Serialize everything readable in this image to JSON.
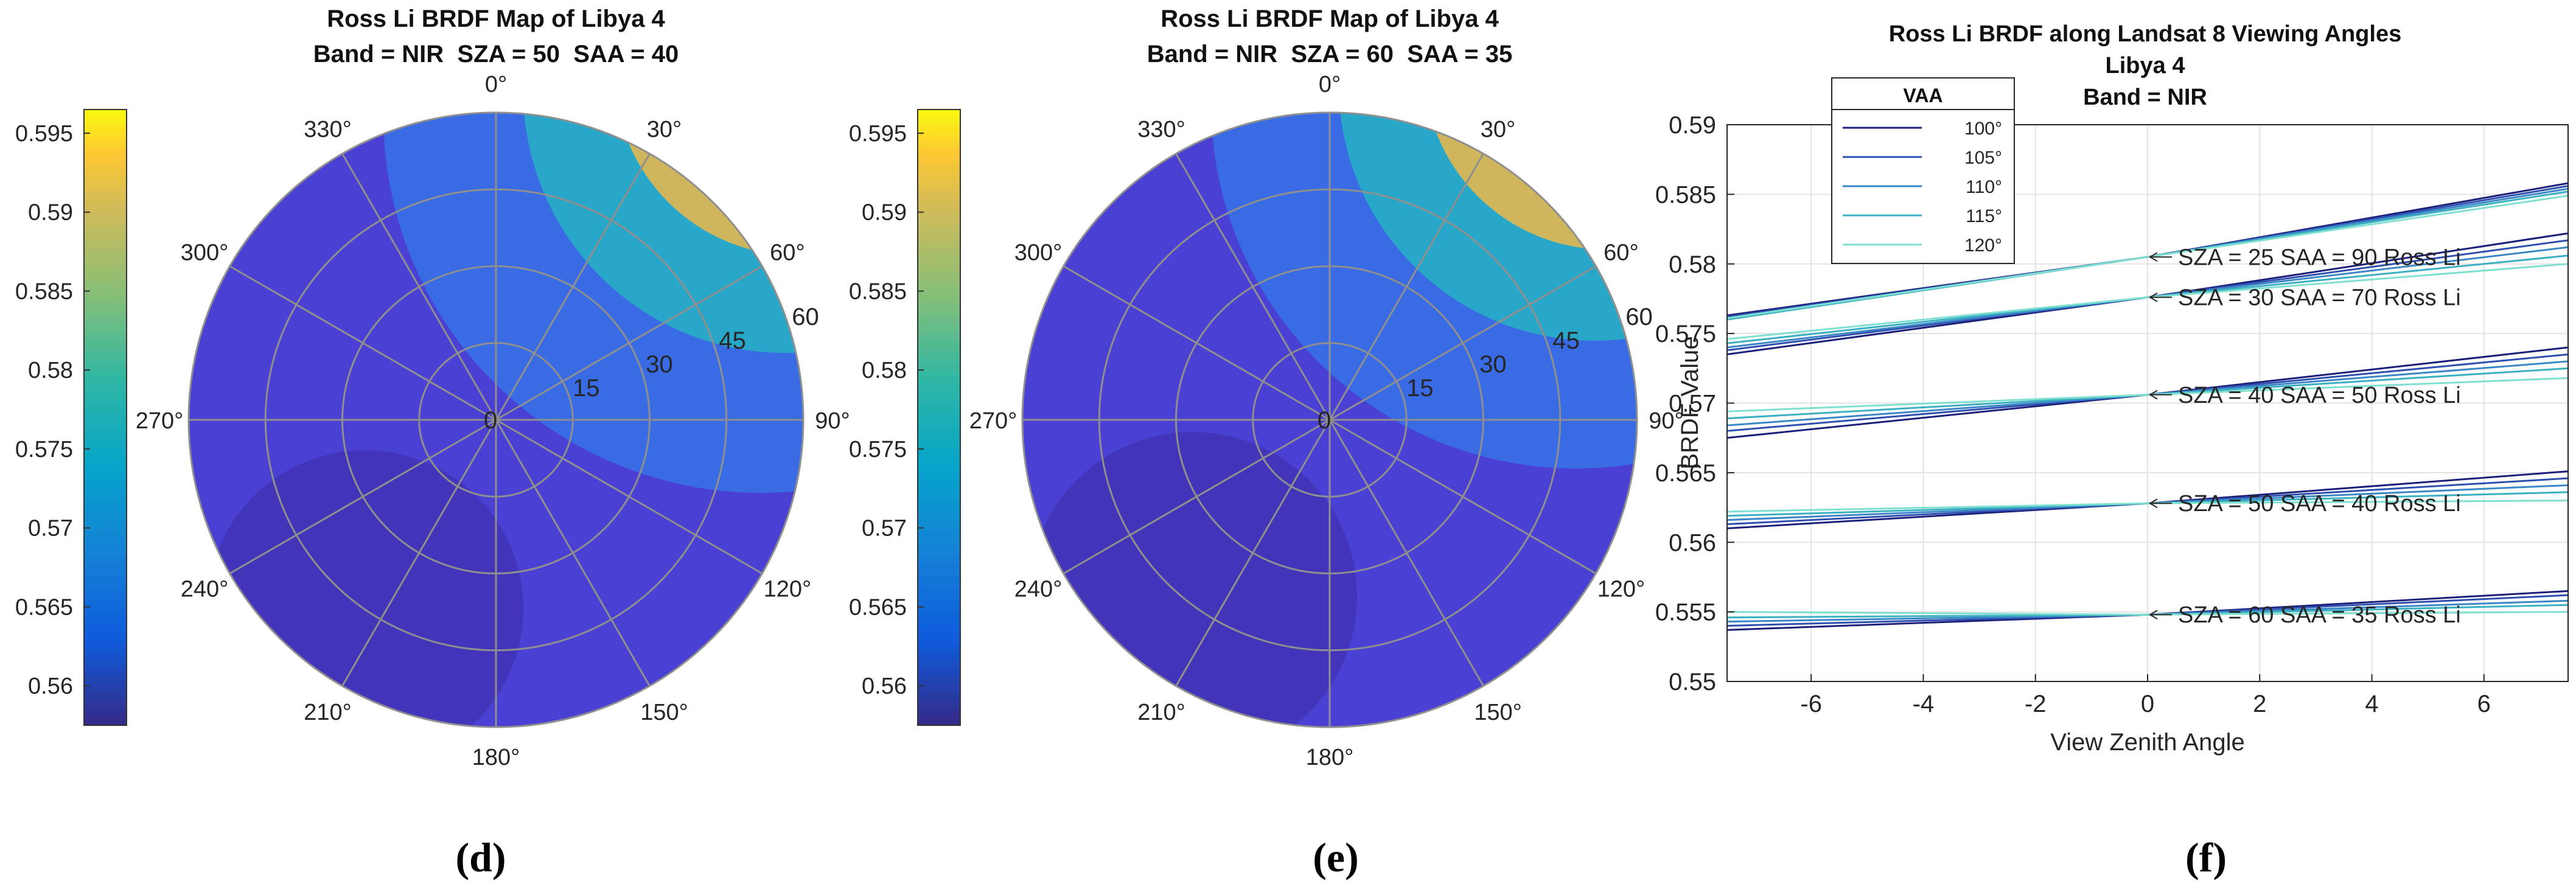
{
  "chart_data": [
    {
      "type": "heatmap",
      "subplot": "(d)",
      "title": "Ross Li BRDF Map of Libya 4",
      "subtitle": "Band = NIR  SZA = 50  SAA = 40",
      "colorbar": {
        "ticks": [
          "0.56",
          "0.565",
          "0.57",
          "0.575",
          "0.58",
          "0.585",
          "0.59",
          "0.595"
        ],
        "range": [
          0.5575,
          0.5965
        ]
      },
      "angle_ticks": [
        "0°",
        "30°",
        "60°",
        "90°",
        "120°",
        "150°",
        "180°",
        "210°",
        "240°",
        "270°",
        "300°",
        "330°"
      ],
      "radius_ticks": [
        "0",
        "15",
        "30",
        "45",
        "60"
      ],
      "hotspot_azimuth_deg": 40,
      "hotspot_zenith_deg": 50
    },
    {
      "type": "heatmap",
      "subplot": "(e)",
      "title": "Ross Li BRDF Map of Libya 4",
      "subtitle": "Band = NIR  SZA = 60  SAA = 35",
      "colorbar": {
        "ticks": [
          "0.56",
          "0.565",
          "0.57",
          "0.575",
          "0.58",
          "0.585",
          "0.59",
          "0.595"
        ],
        "range": [
          0.5575,
          0.5965
        ]
      },
      "angle_ticks": [
        "0°",
        "30°",
        "60°",
        "90°",
        "120°",
        "150°",
        "180°",
        "210°",
        "240°",
        "270°",
        "300°",
        "330°"
      ],
      "radius_ticks": [
        "0",
        "15",
        "30",
        "45",
        "60"
      ],
      "hotspot_azimuth_deg": 35,
      "hotspot_zenith_deg": 60
    },
    {
      "type": "line",
      "subplot": "(f)",
      "title": "Ross Li BRDF along Landsat 8 Viewing Angles",
      "title_line2": "Libya 4",
      "title_line3": "Band = NIR",
      "xlabel": "View Zenith Angle",
      "ylabel": "BRDF Value",
      "xlim": [
        -7.5,
        7.5
      ],
      "ylim": [
        0.55,
        0.59
      ],
      "xticks": [
        "-6",
        "-4",
        "-2",
        "0",
        "2",
        "4",
        "6"
      ],
      "yticks": [
        "0.55",
        "0.555",
        "0.56",
        "0.565",
        "0.57",
        "0.575",
        "0.58",
        "0.585",
        "0.59"
      ],
      "legend_title": "VAA",
      "legend": [
        "100°",
        "105°",
        "110°",
        "115°",
        "120°"
      ],
      "series_colors": [
        "#1b1f7a",
        "#2f4fb0",
        "#3a86c6",
        "#3bb0c2",
        "#7fe0d0"
      ],
      "groups": [
        {
          "label": "SZA = 25  SAA = 90 Ross Li",
          "center": 0.5805,
          "left": [
            0.5763,
            0.5762,
            0.5761,
            0.576,
            0.5761
          ],
          "right": [
            0.5858,
            0.5856,
            0.5854,
            0.5852,
            0.5849
          ]
        },
        {
          "label": "SZA = 30  SAA = 70 Ross Li",
          "center": 0.5776,
          "left": [
            0.5735,
            0.5738,
            0.574,
            0.5743,
            0.5746
          ],
          "right": [
            0.5822,
            0.5817,
            0.5812,
            0.5806,
            0.58
          ]
        },
        {
          "label": "SZA = 40  SAA = 50 Ross Li",
          "center": 0.5706,
          "left": [
            0.5675,
            0.568,
            0.5684,
            0.5689,
            0.5694
          ],
          "right": [
            0.574,
            0.5735,
            0.573,
            0.5725,
            0.5718
          ]
        },
        {
          "label": "SZA = 50  SAA = 40 Ross Li",
          "center": 0.5628,
          "left": [
            0.561,
            0.5613,
            0.5616,
            0.5619,
            0.5622
          ],
          "right": [
            0.5651,
            0.5646,
            0.5641,
            0.5636,
            0.563
          ]
        },
        {
          "label": "SZA = 60  SAA = 35 Ross Li",
          "center": 0.5548,
          "left": [
            0.5537,
            0.554,
            0.5543,
            0.5546,
            0.555
          ],
          "right": [
            0.5565,
            0.5562,
            0.5558,
            0.5555,
            0.555
          ]
        }
      ]
    }
  ],
  "panel_labels": [
    "(d)",
    "(e)",
    "(f)"
  ]
}
